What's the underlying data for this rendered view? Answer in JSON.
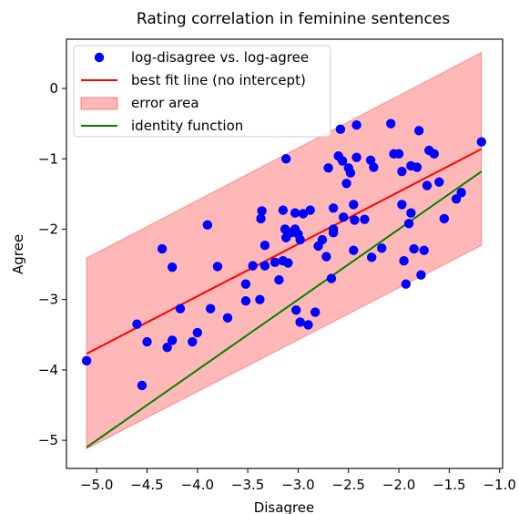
{
  "chart_data": {
    "type": "scatter",
    "title": "Rating correlation in feminine sentences",
    "xlabel": "Disagree",
    "ylabel": "Agree",
    "xlim": [
      -5.3,
      -0.97
    ],
    "ylim": [
      -5.4,
      0.7
    ],
    "xticks": [
      -5.0,
      -4.5,
      -4.0,
      -3.5,
      -3.0,
      -2.5,
      -2.0,
      -1.5,
      -1.0
    ],
    "xtick_labels": [
      "−5.0",
      "−4.5",
      "−4.0",
      "−3.5",
      "−3.0",
      "−2.5",
      "−2.0",
      "−1.5",
      "−1.0"
    ],
    "yticks": [
      0,
      -1,
      -2,
      -3,
      -4,
      -5
    ],
    "ytick_labels": [
      "0",
      "−1",
      "−2",
      "−3",
      "−4",
      "−5"
    ],
    "legend_position": "top-left",
    "legend": [
      {
        "label": "log-disagree vs. log-agree",
        "kind": "marker",
        "color": "#0000ff"
      },
      {
        "label": "best fit line (no intercept)",
        "kind": "line",
        "color": "#ff0000"
      },
      {
        "label": "error area",
        "kind": "patch",
        "color": "#ff0000"
      },
      {
        "label": "identity function",
        "kind": "line",
        "color": "#008000"
      }
    ],
    "series": [
      {
        "kind": "scatter",
        "color": "#0000ff",
        "points": [
          [
            -5.1,
            -3.87
          ],
          [
            -4.6,
            -3.35
          ],
          [
            -4.55,
            -4.22
          ],
          [
            -4.5,
            -3.6
          ],
          [
            -4.35,
            -2.28
          ],
          [
            -4.3,
            -3.68
          ],
          [
            -4.25,
            -2.54
          ],
          [
            -4.25,
            -3.58
          ],
          [
            -4.17,
            -3.13
          ],
          [
            -4.05,
            -3.6
          ],
          [
            -4.0,
            -3.47
          ],
          [
            -3.87,
            -3.13
          ],
          [
            -3.9,
            -1.94
          ],
          [
            -3.8,
            -2.53
          ],
          [
            -3.7,
            -3.26
          ],
          [
            -3.52,
            -3.02
          ],
          [
            -3.52,
            -2.78
          ],
          [
            -3.45,
            -2.52
          ],
          [
            -3.38,
            -3.0
          ],
          [
            -3.37,
            -1.85
          ],
          [
            -3.36,
            -1.74
          ],
          [
            -3.33,
            -2.23
          ],
          [
            -3.33,
            -2.52
          ],
          [
            -3.23,
            -2.47
          ],
          [
            -3.19,
            -2.72
          ],
          [
            -3.15,
            -1.73
          ],
          [
            -3.15,
            -2.45
          ],
          [
            -3.13,
            -2.0
          ],
          [
            -3.12,
            -2.12
          ],
          [
            -3.12,
            -1.0
          ],
          [
            -3.1,
            -2.48
          ],
          [
            -3.07,
            -2.05
          ],
          [
            -3.03,
            -1.77
          ],
          [
            -3.03,
            -2.0
          ],
          [
            -3.02,
            -3.15
          ],
          [
            -3.0,
            -2.07
          ],
          [
            -2.98,
            -3.32
          ],
          [
            -2.98,
            -2.15
          ],
          [
            -2.95,
            -1.78
          ],
          [
            -2.9,
            -3.36
          ],
          [
            -2.88,
            -1.73
          ],
          [
            -2.83,
            -3.18
          ],
          [
            -2.8,
            -2.24
          ],
          [
            -2.76,
            -2.15
          ],
          [
            -2.72,
            -2.39
          ],
          [
            -2.7,
            -1.13
          ],
          [
            -2.67,
            -2.7
          ],
          [
            -2.65,
            -1.7
          ],
          [
            -2.65,
            -2.05
          ],
          [
            -2.65,
            -2.0
          ],
          [
            -2.6,
            -0.96
          ],
          [
            -2.58,
            -0.58
          ],
          [
            -2.56,
            -1.03
          ],
          [
            -2.55,
            -1.83
          ],
          [
            -2.52,
            -1.35
          ],
          [
            -2.5,
            -1.13
          ],
          [
            -2.48,
            -1.2
          ],
          [
            -2.45,
            -1.65
          ],
          [
            -2.45,
            -2.3
          ],
          [
            -2.42,
            -0.98
          ],
          [
            -2.42,
            -0.52
          ],
          [
            -2.44,
            -1.87
          ],
          [
            -2.34,
            -1.86
          ],
          [
            -2.28,
            -1.02
          ],
          [
            -2.25,
            -1.12
          ],
          [
            -2.27,
            -2.4
          ],
          [
            -2.17,
            -2.27
          ],
          [
            -2.08,
            -0.5
          ],
          [
            -2.05,
            -0.93
          ],
          [
            -2.0,
            -0.93
          ],
          [
            -1.97,
            -1.65
          ],
          [
            -1.97,
            -1.18
          ],
          [
            -1.95,
            -2.45
          ],
          [
            -1.93,
            -2.78
          ],
          [
            -1.9,
            -1.92
          ],
          [
            -1.88,
            -1.77
          ],
          [
            -1.88,
            -1.1
          ],
          [
            -1.85,
            -2.28
          ],
          [
            -1.82,
            -1.12
          ],
          [
            -1.8,
            -0.6
          ],
          [
            -1.78,
            -2.65
          ],
          [
            -1.75,
            -2.3
          ],
          [
            -1.72,
            -1.38
          ],
          [
            -1.7,
            -0.88
          ],
          [
            -1.65,
            -0.93
          ],
          [
            -1.6,
            -1.33
          ],
          [
            -1.55,
            -1.85
          ],
          [
            -1.43,
            -1.57
          ],
          [
            -1.38,
            -1.48
          ],
          [
            -1.18,
            -0.76
          ]
        ]
      },
      {
        "kind": "line",
        "name": "best fit line (no intercept)",
        "color": "#ff0000",
        "x": [
          -5.1,
          -1.18
        ],
        "y": [
          -3.77,
          -0.86
        ]
      },
      {
        "kind": "band",
        "name": "error area",
        "color": "#ff0000",
        "x": [
          -5.1,
          -1.18
        ],
        "upper": [
          -2.41,
          0.51
        ],
        "lower": [
          -5.12,
          -2.23
        ]
      },
      {
        "kind": "line",
        "name": "identity function",
        "color": "#008000",
        "x": [
          -5.1,
          -1.18
        ],
        "y": [
          -5.1,
          -1.18
        ]
      }
    ]
  }
}
